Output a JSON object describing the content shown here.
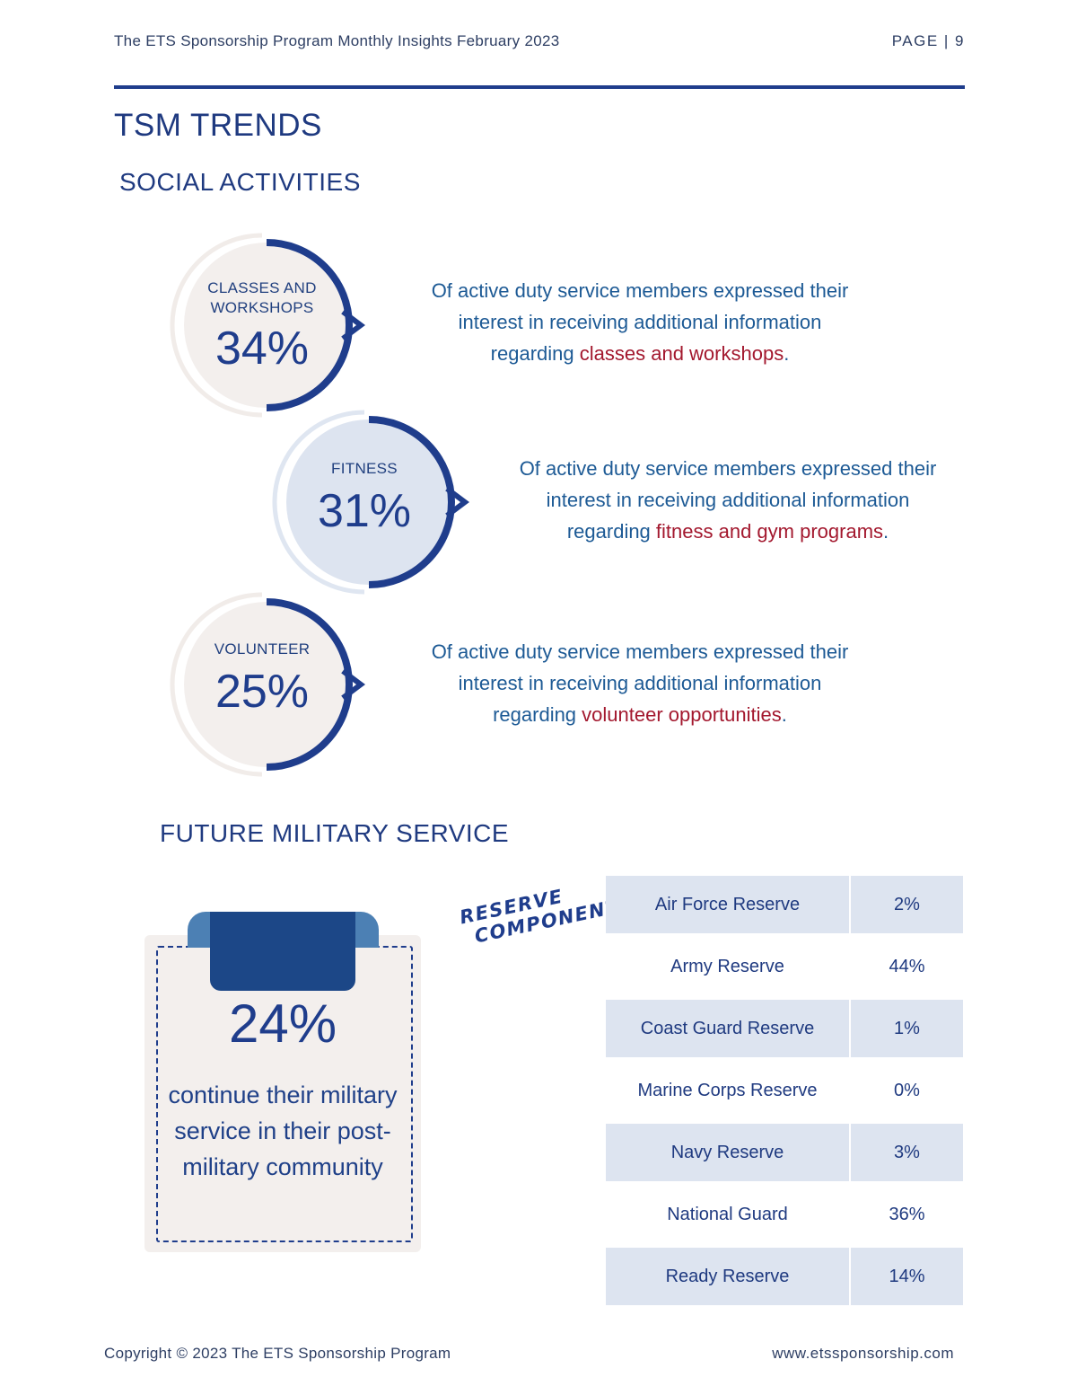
{
  "header": {
    "title": "The ETS Sponsorship Program Monthly Insights February 2023",
    "page": "PAGE | 9"
  },
  "page_title": "TSM TRENDS",
  "social": {
    "heading": "SOCIAL ACTIVITIES",
    "items": [
      {
        "label_line1": "CLASSES AND",
        "label_line2": "WORKSHOPS",
        "value": "34%",
        "desc_line1": "Of active duty service members expressed their",
        "desc_line2": "interest in receiving additional information",
        "desc_prefix": "regarding ",
        "desc_highlight": "classes and workshops",
        "desc_suffix": "."
      },
      {
        "label_line1": "FITNESS",
        "label_line2": "",
        "value": "31%",
        "desc_line1": "Of active duty service members expressed their",
        "desc_line2": "interest in receiving additional information",
        "desc_prefix": "regarding ",
        "desc_highlight": "fitness and gym programs",
        "desc_suffix": "."
      },
      {
        "label_line1": "VOLUNTEER",
        "label_line2": "",
        "value": "25%",
        "desc_line1": "Of active duty service members expressed their",
        "desc_line2": "interest in receiving additional information",
        "desc_prefix": "regarding ",
        "desc_highlight": "volunteer opportunities",
        "desc_suffix": "."
      }
    ]
  },
  "future": {
    "heading": "FUTURE MILITARY SERVICE",
    "card_value": "24%",
    "card_text": "continue their military service in their post-military community",
    "tag_line1": "RESERVE",
    "tag_line2": "COMPONENT",
    "table": [
      {
        "name": "Air Force Reserve",
        "value": "2%"
      },
      {
        "name": "Army Reserve",
        "value": "44%"
      },
      {
        "name": "Coast Guard Reserve",
        "value": "1%"
      },
      {
        "name": "Marine Corps Reserve",
        "value": "0%"
      },
      {
        "name": "Navy Reserve",
        "value": "3%"
      },
      {
        "name": "National Guard",
        "value": "36%"
      },
      {
        "name": "Ready Reserve",
        "value": "14%"
      }
    ]
  },
  "footer": {
    "copyright": "Copyright © 2023 The ETS Sponsorship Program",
    "website": "www.etssponsorship.com"
  },
  "colors": {
    "navy": "#1f3d8c",
    "highlight_red": "#a3182e",
    "text_blue": "#1d5a95",
    "table_shade": "#dde4f0",
    "card_bg": "#f3efed"
  }
}
